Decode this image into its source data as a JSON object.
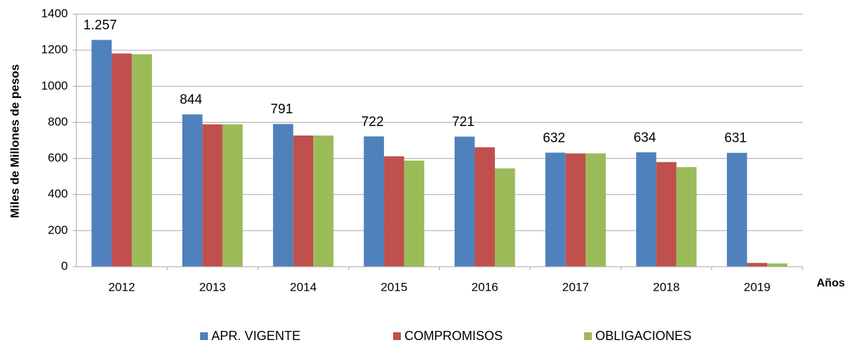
{
  "chart_data": {
    "type": "bar",
    "xlabel": "Años",
    "ylabel": "Miles de Millones de pesos",
    "categories": [
      "2012",
      "2013",
      "2014",
      "2015",
      "2016",
      "2017",
      "2018",
      "2019"
    ],
    "series": [
      {
        "name": "APR. VIGENTE",
        "color": "#4f81bd",
        "values": [
          1257,
          844,
          791,
          722,
          721,
          632,
          634,
          631
        ],
        "value_labels": [
          "1.257",
          "844",
          "791",
          "722",
          "721",
          "632",
          "634",
          "631"
        ]
      },
      {
        "name": "COMPROMISOS",
        "color": "#c0504d",
        "values": [
          1182,
          789,
          727,
          612,
          662,
          628,
          580,
          21
        ]
      },
      {
        "name": "OBLIGACIONES",
        "color": "#9bbb59",
        "values": [
          1177,
          789,
          727,
          588,
          545,
          628,
          552,
          18
        ]
      }
    ],
    "ylim": [
      0,
      1400
    ],
    "yticks": [
      0,
      200,
      400,
      600,
      800,
      1000,
      1200,
      1400
    ],
    "grid": true
  }
}
